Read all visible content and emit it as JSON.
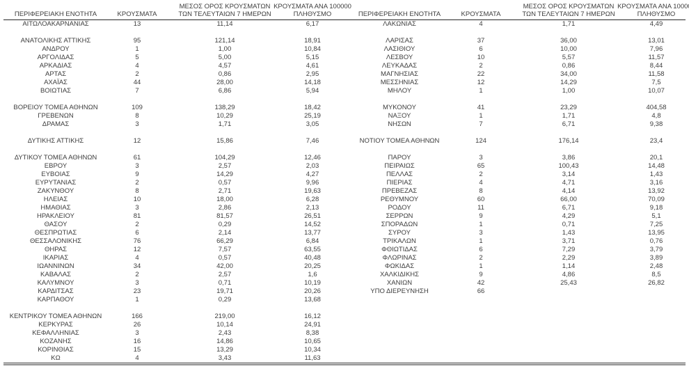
{
  "columns": [
    {
      "label": "ΠΕΡΙΦΕΡΕΙΑΚΗ ΕΝΟΤΗΤΑ"
    },
    {
      "label": "ΚΡΟΥΣΜΑΤΑ"
    },
    {
      "line1": "ΜΕΣΟΣ ΟΡΟΣ ΚΡΟΥΣΜΑΤΩΝ",
      "line2": "ΤΩΝ ΤΕΛΕΥΤΑΙΩΝ 7 ΗΜΕΡΩΝ"
    },
    {
      "line1": "ΚΡΟΥΣΜΑΤΑ ΑΝΑ 100000",
      "line2": "ΠΛΗΘΥΣΜΟ"
    }
  ],
  "left_rows": [
    [
      "ΑΙΤΩΛΟΑΚΑΡΝΑΝΙΑΣ",
      "13",
      "11,14",
      "6,17"
    ],
    null,
    [
      "ΑΝΑΤΟΛΙΚΗΣ ΑΤΤΙΚΗΣ",
      "95",
      "121,14",
      "18,91"
    ],
    [
      "ΑΝΔΡΟΥ",
      "1",
      "1,00",
      "10,84"
    ],
    [
      "ΑΡΓΟΛΙΔΑΣ",
      "5",
      "5,00",
      "5,15"
    ],
    [
      "ΑΡΚΑΔΙΑΣ",
      "4",
      "4,57",
      "4,61"
    ],
    [
      "ΑΡΤΑΣ",
      "2",
      "0,86",
      "2,95"
    ],
    [
      "ΑΧΑΪΑΣ",
      "44",
      "28,00",
      "14,18"
    ],
    [
      "ΒΟΙΩΤΙΑΣ",
      "7",
      "6,86",
      "5,94"
    ],
    null,
    [
      "ΒΟΡΕΙΟΥ ΤΟΜΕΑ ΑΘΗΝΩΝ",
      "109",
      "138,29",
      "18,42"
    ],
    [
      "ΓΡΕΒΕΝΩΝ",
      "8",
      "10,29",
      "25,19"
    ],
    [
      "ΔΡΑΜΑΣ",
      "3",
      "1,71",
      "3,05"
    ],
    null,
    [
      "ΔΥΤΙΚΗΣ ΑΤΤΙΚΗΣ",
      "12",
      "15,86",
      "7,46"
    ],
    null,
    [
      "ΔΥΤΙΚΟΥ ΤΟΜΕΑ ΑΘΗΝΩΝ",
      "61",
      "104,29",
      "12,46"
    ],
    [
      "ΕΒΡΟΥ",
      "3",
      "2,57",
      "2,03"
    ],
    [
      "ΕΥΒΟΙΑΣ",
      "9",
      "14,29",
      "4,27"
    ],
    [
      "ΕΥΡΥΤΑΝΙΑΣ",
      "2",
      "0,57",
      "9,96"
    ],
    [
      "ΖΑΚΥΝΘΟΥ",
      "8",
      "2,71",
      "19,63"
    ],
    [
      "ΗΛΕΙΑΣ",
      "10",
      "18,00",
      "6,28"
    ],
    [
      "ΗΜΑΘΙΑΣ",
      "3",
      "2,86",
      "2,13"
    ],
    [
      "ΗΡΑΚΛΕΙΟΥ",
      "81",
      "81,57",
      "26,51"
    ],
    [
      "ΘΑΣΟΥ",
      "2",
      "0,29",
      "14,52"
    ],
    [
      "ΘΕΣΠΡΩΤΙΑΣ",
      "6",
      "2,14",
      "13,77"
    ],
    [
      "ΘΕΣΣΑΛΟΝΙΚΗΣ",
      "76",
      "66,29",
      "6,84"
    ],
    [
      "ΘΗΡΑΣ",
      "12",
      "7,57",
      "63,55"
    ],
    [
      "ΙΚΑΡΙΑΣ",
      "4",
      "0,57",
      "40,48"
    ],
    [
      "ΙΩΑΝΝΙΝΩΝ",
      "34",
      "42,00",
      "20,25"
    ],
    [
      "ΚΑΒΑΛΑΣ",
      "2",
      "2,57",
      "1,6"
    ],
    [
      "ΚΑΛΥΜΝΟΥ",
      "3",
      "0,71",
      "10,19"
    ],
    [
      "ΚΑΡΔΙΤΣΑΣ",
      "23",
      "19,71",
      "20,26"
    ],
    [
      "ΚΑΡΠΑΘΟΥ",
      "1",
      "0,29",
      "13,68"
    ],
    null,
    [
      "ΚΕΝΤΡΙΚΟΥ ΤΟΜΕΑ ΑΘΗΝΩΝ",
      "166",
      "219,00",
      "16,12"
    ],
    [
      "ΚΕΡΚΥΡΑΣ",
      "26",
      "10,14",
      "24,91"
    ],
    [
      "ΚΕΦΑΛΛΗΝΙΑΣ",
      "3",
      "2,43",
      "8,38"
    ],
    [
      "ΚΟΖΑΝΗΣ",
      "16",
      "14,86",
      "10,65"
    ],
    [
      "ΚΟΡΙΝΘΙΑΣ",
      "15",
      "13,29",
      "10,34"
    ],
    [
      "ΚΩ",
      "4",
      "3,43",
      "11,63"
    ]
  ],
  "right_rows": [
    [
      "ΛΑΚΩΝΙΑΣ",
      "4",
      "1,71",
      "4,49"
    ],
    null,
    [
      "ΛΑΡΙΣΑΣ",
      "37",
      "36,00",
      "13,01"
    ],
    [
      "ΛΑΣΙΘΙΟΥ",
      "6",
      "10,00",
      "7,96"
    ],
    [
      "ΛΕΣΒΟΥ",
      "10",
      "5,57",
      "11,57"
    ],
    [
      "ΛΕΥΚΑΔΑΣ",
      "2",
      "0,86",
      "8,44"
    ],
    [
      "ΜΑΓΝΗΣΙΑΣ",
      "22",
      "34,00",
      "11,58"
    ],
    [
      "ΜΕΣΣΗΝΙΑΣ",
      "12",
      "14,29",
      "7,5"
    ],
    [
      "ΜΗΛΟΥ",
      "1",
      "1,00",
      "10,07"
    ],
    null,
    [
      "ΜΥΚΟΝΟΥ",
      "41",
      "23,29",
      "404,58"
    ],
    [
      "ΝΑΞΟΥ",
      "1",
      "1,71",
      "4,8"
    ],
    [
      "ΝΗΣΩΝ",
      "7",
      "6,71",
      "9,38"
    ],
    null,
    [
      "ΝΟΤΙΟΥ ΤΟΜΕΑ ΑΘΗΝΩΝ",
      "124",
      "176,14",
      "23,4"
    ],
    null,
    [
      "ΠΑΡΟΥ",
      "3",
      "3,86",
      "20,1"
    ],
    [
      "ΠΕΙΡΑΙΩΣ",
      "65",
      "100,43",
      "14,48"
    ],
    [
      "ΠΕΛΛΑΣ",
      "2",
      "3,14",
      "1,43"
    ],
    [
      "ΠΙΕΡΙΑΣ",
      "4",
      "4,71",
      "3,16"
    ],
    [
      "ΠΡΕΒΕΖΑΣ",
      "8",
      "4,14",
      "13,92"
    ],
    [
      "ΡΕΘΥΜΝΟΥ",
      "60",
      "66,00",
      "70,09"
    ],
    [
      "ΡΟΔΟΥ",
      "11",
      "6,71",
      "9,18"
    ],
    [
      "ΣΕΡΡΩΝ",
      "9",
      "4,29",
      "5,1"
    ],
    [
      "ΣΠΟΡΑΔΩΝ",
      "1",
      "0,71",
      "7,25"
    ],
    [
      "ΣΥΡΟΥ",
      "3",
      "1,43",
      "13,95"
    ],
    [
      "ΤΡΙΚΑΛΩΝ",
      "1",
      "3,71",
      "0,76"
    ],
    [
      "ΦΘΙΩΤΙΔΑΣ",
      "6",
      "7,29",
      "3,79"
    ],
    [
      "ΦΛΩΡΙΝΑΣ",
      "2",
      "2,29",
      "3,89"
    ],
    [
      "ΦΩΚΙΔΑΣ",
      "1",
      "1,14",
      "2,48"
    ],
    [
      "ΧΑΛΚΙΔΙΚΗΣ",
      "9",
      "4,86",
      "8,5"
    ],
    [
      "ΧΑΝΙΩΝ",
      "42",
      "25,43",
      "26,82"
    ],
    [
      "ΥΠΟ ΔΙΕΡΕΥΝΗΣΗ",
      "66",
      "",
      ""
    ]
  ],
  "colors": {
    "text": "#3d3d3d",
    "header_rule": "#262626",
    "bottom_rule_dark": "#3a3a3a",
    "bottom_rule_gray": "#8e8e8e"
  }
}
